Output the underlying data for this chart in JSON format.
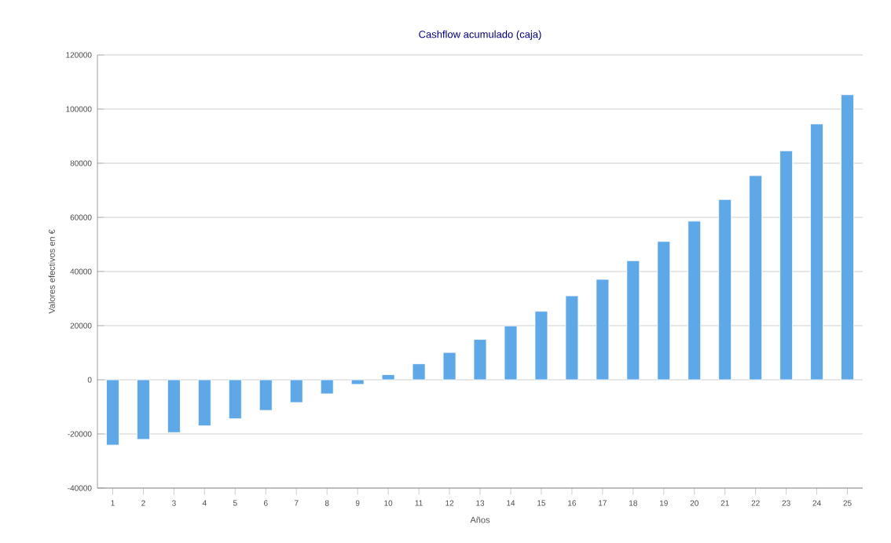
{
  "chart_data": {
    "type": "bar",
    "title": "Cashflow acumulado (caja)",
    "xlabel": "Años",
    "ylabel": "Valores efectivos en €",
    "categories": [
      "1",
      "2",
      "3",
      "4",
      "5",
      "6",
      "7",
      "8",
      "9",
      "10",
      "11",
      "12",
      "13",
      "14",
      "15",
      "16",
      "17",
      "18",
      "19",
      "20",
      "21",
      "22",
      "23",
      "24",
      "25"
    ],
    "values": [
      -24100,
      -22000,
      -19500,
      -17000,
      -14400,
      -11300,
      -8400,
      -5200,
      -1700,
      1900,
      5900,
      10100,
      14900,
      19900,
      25300,
      31000,
      37100,
      44000,
      51100,
      58600,
      66600,
      75400,
      84600,
      94500,
      105300
    ],
    "color": "#5fa8e8",
    "ylim": [
      -40000,
      120000
    ],
    "yticks": [
      -40000,
      -20000,
      0,
      20000,
      40000,
      60000,
      80000,
      100000,
      120000
    ],
    "grid": "y"
  }
}
